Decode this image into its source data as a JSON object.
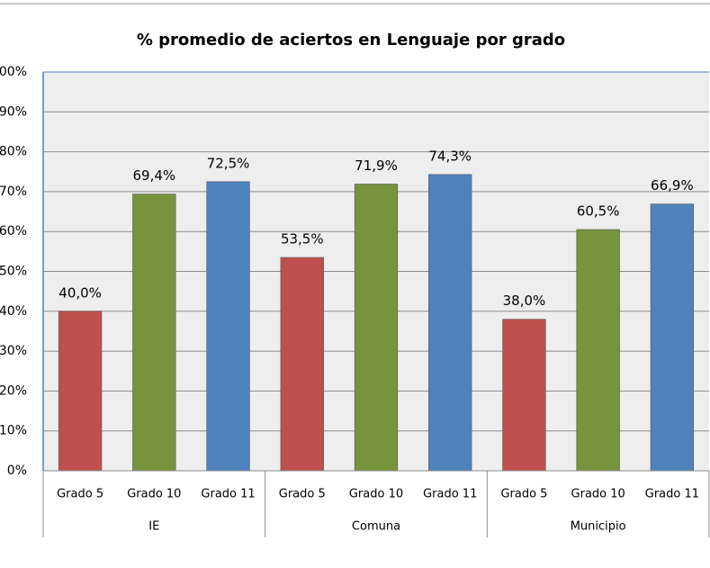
{
  "chart_data": {
    "type": "bar",
    "title": "% promedio de aciertos en Lenguaje por grado",
    "categories": [
      "IE",
      "Comuna",
      "Municipio"
    ],
    "series": [
      {
        "name": "Grado 5",
        "color": "#c0504d",
        "values": [
          40.0,
          53.5,
          38.0
        ],
        "value_labels": [
          "40,0%",
          "53,5%",
          "38,0%"
        ]
      },
      {
        "name": "Grado 10",
        "color": "#77933c",
        "values": [
          69.4,
          71.9,
          60.5
        ],
        "value_labels": [
          "69,4%",
          "71,9%",
          "60,5%"
        ]
      },
      {
        "name": "Grado 11",
        "color": "#4f81bd",
        "values": [
          72.5,
          74.3,
          66.9
        ],
        "value_labels": [
          "72,5%",
          "74,3%",
          "66,9%"
        ]
      }
    ],
    "ylim": [
      0,
      100
    ],
    "yticks": [
      {
        "value": 0,
        "label": "0%"
      },
      {
        "value": 10,
        "label": "10%"
      },
      {
        "value": 20,
        "label": "20%"
      },
      {
        "value": 30,
        "label": "30%"
      },
      {
        "value": 40,
        "label": "40%"
      },
      {
        "value": 50,
        "label": "50%"
      },
      {
        "value": 60,
        "label": "60%"
      },
      {
        "value": 70,
        "label": "70%"
      },
      {
        "value": 80,
        "label": "80%"
      },
      {
        "value": 90,
        "label": "90%"
      },
      {
        "value": 100,
        "label": "100%"
      }
    ],
    "grid": true
  }
}
